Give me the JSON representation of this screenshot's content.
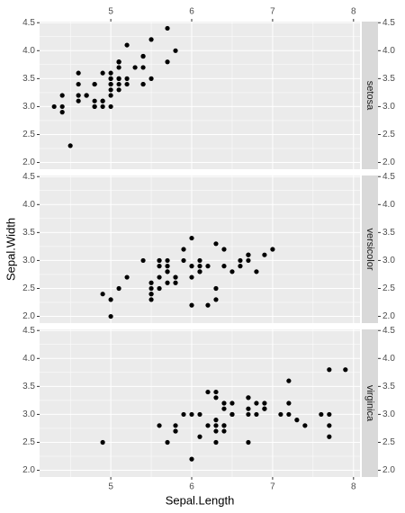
{
  "chart_data": {
    "type": "scatter",
    "x_label": "Sepal.Length",
    "y_label": "Sepal.Width",
    "xlim": [
      4.12,
      8.08
    ],
    "xticks": [
      5,
      6,
      7,
      8
    ],
    "ylim": [
      1.88,
      4.52
    ],
    "yticks": [
      {
        "value": 2,
        "label": "2.0"
      },
      {
        "value": 2.5,
        "label": "2.5"
      },
      {
        "value": 3,
        "label": "3.0"
      },
      {
        "value": 3.5,
        "label": "3.5"
      },
      {
        "value": 4,
        "label": "4.0"
      },
      {
        "value": 4.5,
        "label": "4.5"
      }
    ],
    "grid": true,
    "color": "#000000",
    "series": [
      {
        "name": "setosa",
        "x": [
          5.1,
          4.9,
          4.7,
          4.6,
          5.0,
          5.4,
          4.6,
          5.0,
          4.4,
          4.9,
          5.4,
          4.8,
          4.8,
          4.3,
          5.8,
          5.7,
          5.4,
          5.1,
          5.7,
          5.1,
          5.4,
          5.1,
          4.6,
          5.1,
          4.8,
          5.0,
          5.0,
          5.2,
          5.2,
          4.7,
          4.8,
          5.4,
          5.2,
          5.5,
          4.9,
          5.0,
          5.5,
          4.9,
          4.4,
          5.1,
          5.0,
          4.5,
          4.4,
          5.0,
          5.1,
          4.8,
          5.1,
          4.6,
          5.3,
          5.0
        ],
        "y": [
          3.5,
          3.0,
          3.2,
          3.1,
          3.6,
          3.9,
          3.4,
          3.4,
          2.9,
          3.1,
          3.7,
          3.4,
          3.0,
          3.0,
          4.0,
          4.4,
          3.9,
          3.5,
          3.8,
          3.8,
          3.4,
          3.7,
          3.6,
          3.3,
          3.4,
          3.0,
          3.4,
          3.5,
          3.4,
          3.2,
          3.1,
          3.4,
          4.1,
          4.2,
          3.1,
          3.2,
          3.5,
          3.6,
          3.0,
          3.4,
          3.5,
          2.3,
          3.2,
          3.5,
          3.8,
          3.0,
          3.8,
          3.2,
          3.7,
          3.3
        ]
      },
      {
        "name": "versicolor",
        "x": [
          7.0,
          6.4,
          6.9,
          5.5,
          6.5,
          5.7,
          6.3,
          4.9,
          6.6,
          5.2,
          5.0,
          5.9,
          6.0,
          6.1,
          5.6,
          6.7,
          5.6,
          5.8,
          6.2,
          5.6,
          5.9,
          6.1,
          6.3,
          6.1,
          6.4,
          6.6,
          6.8,
          6.7,
          6.0,
          5.7,
          5.5,
          5.5,
          5.8,
          6.0,
          5.4,
          6.0,
          6.7,
          6.3,
          5.6,
          5.5,
          5.5,
          6.1,
          5.8,
          5.0,
          5.6,
          5.7,
          5.7,
          6.2,
          5.1,
          5.7
        ],
        "y": [
          3.2,
          3.2,
          3.1,
          2.3,
          2.8,
          2.8,
          3.3,
          2.4,
          2.9,
          2.7,
          2.0,
          3.0,
          2.2,
          2.9,
          2.9,
          3.1,
          3.0,
          2.7,
          2.2,
          2.5,
          3.2,
          2.8,
          2.5,
          2.8,
          2.9,
          3.0,
          2.8,
          3.0,
          2.9,
          2.6,
          2.4,
          2.4,
          2.7,
          2.7,
          3.0,
          3.4,
          3.1,
          2.3,
          3.0,
          2.5,
          2.6,
          3.0,
          2.6,
          2.3,
          2.7,
          3.0,
          2.9,
          2.9,
          2.5,
          2.8
        ]
      },
      {
        "name": "virginica",
        "x": [
          6.3,
          5.8,
          7.1,
          6.3,
          6.5,
          7.6,
          4.9,
          7.3,
          6.7,
          7.2,
          6.5,
          6.4,
          6.8,
          5.7,
          5.8,
          6.4,
          6.5,
          7.7,
          7.7,
          6.0,
          6.9,
          5.6,
          7.7,
          6.3,
          6.7,
          7.2,
          6.2,
          6.1,
          6.4,
          7.2,
          7.4,
          7.9,
          6.4,
          6.3,
          6.1,
          7.7,
          6.3,
          6.4,
          6.0,
          6.9,
          6.7,
          6.9,
          5.8,
          6.8,
          6.7,
          6.7,
          6.3,
          6.5,
          6.2,
          5.9
        ],
        "y": [
          3.3,
          2.7,
          3.0,
          2.9,
          3.0,
          3.0,
          2.5,
          2.9,
          2.5,
          3.6,
          3.2,
          2.7,
          3.0,
          2.5,
          2.8,
          3.2,
          3.0,
          3.8,
          2.6,
          2.2,
          3.2,
          2.8,
          2.8,
          2.7,
          3.3,
          3.2,
          2.8,
          3.0,
          2.8,
          3.0,
          2.8,
          3.8,
          2.8,
          2.8,
          2.6,
          3.0,
          3.4,
          3.1,
          3.0,
          3.1,
          3.1,
          3.1,
          2.7,
          3.2,
          3.3,
          3.0,
          2.5,
          3.0,
          3.4,
          3.0
        ]
      }
    ]
  }
}
